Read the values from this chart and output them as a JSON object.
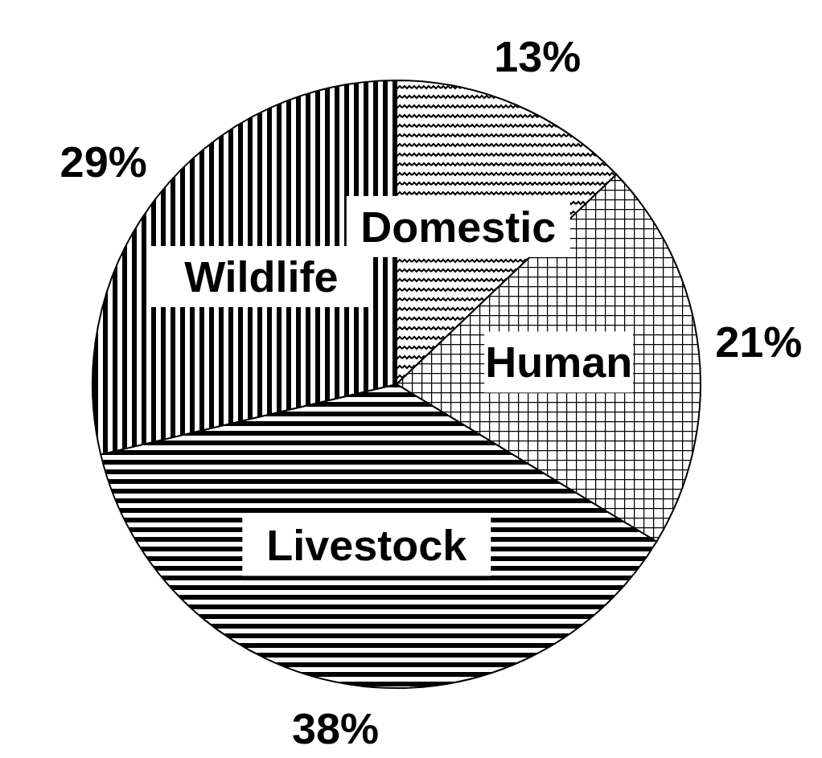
{
  "chart_data": {
    "type": "pie",
    "categories": [
      "Domestic",
      "Human",
      "Livestock",
      "Wildlife"
    ],
    "values": [
      13,
      21,
      38,
      29
    ],
    "colors": [
      "#000000",
      "#000000",
      "#000000",
      "#000000"
    ],
    "value_labels": [
      "13%",
      "21%",
      "38%",
      "29%"
    ]
  }
}
